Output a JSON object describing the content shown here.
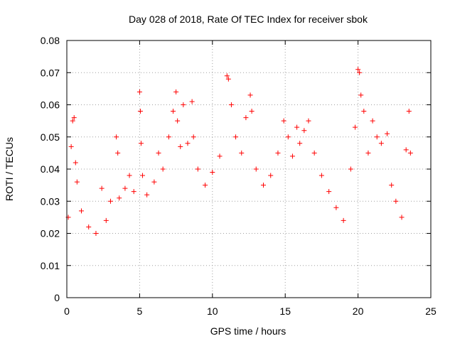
{
  "chart_data": {
    "type": "scatter",
    "title": "Day 028 of 2018, Rate Of TEC Index for receiver sbok",
    "xlabel": "GPS time / hours",
    "ylabel": "ROTI / TECUs",
    "xlim": [
      0,
      25
    ],
    "ylim": [
      0,
      0.08
    ],
    "xticks": [
      0,
      5,
      10,
      15,
      20,
      25
    ],
    "yticks": [
      0,
      0.01,
      0.02,
      0.03,
      0.04,
      0.05,
      0.06,
      0.07,
      0.08
    ],
    "xtick_labels": [
      "0",
      "5",
      "10",
      "15",
      "20",
      "25"
    ],
    "ytick_labels": [
      "0",
      "0.01",
      "0.02",
      "0.03",
      "0.04",
      "0.05",
      "0.06",
      "0.07",
      "0.08"
    ],
    "grid": true,
    "marker": "plus",
    "color": "#ff0000",
    "series": [
      {
        "x": [
          0.1,
          0.3,
          0.4,
          0.5,
          0.6,
          0.7,
          1.0,
          1.5,
          2.0,
          2.4,
          2.7,
          3.0,
          3.4,
          3.5,
          3.6,
          4.0,
          4.3,
          4.6,
          5.0,
          5.05,
          5.1,
          5.2,
          5.5,
          6.0,
          6.3,
          6.6,
          7.0,
          7.3,
          7.5,
          7.6,
          7.8,
          8.0,
          8.3,
          8.6,
          8.7,
          9.0,
          9.5,
          10.0,
          10.5,
          11.0,
          11.1,
          11.3,
          11.6,
          12.0,
          12.3,
          12.6,
          12.7,
          13.0,
          13.5,
          14.0,
          14.5,
          14.9,
          15.2,
          15.5,
          15.8,
          16.0,
          16.3,
          16.6,
          17.0,
          17.5,
          18.0,
          18.5,
          19.0,
          19.5,
          19.8,
          20.0,
          20.1,
          20.2,
          20.4,
          20.7,
          21.0,
          21.3,
          21.6,
          22.0,
          22.3,
          22.6,
          23.0,
          23.3,
          23.5,
          23.6
        ],
        "y": [
          0.025,
          0.047,
          0.055,
          0.056,
          0.042,
          0.036,
          0.027,
          0.022,
          0.02,
          0.034,
          0.024,
          0.03,
          0.05,
          0.045,
          0.031,
          0.034,
          0.038,
          0.033,
          0.064,
          0.058,
          0.048,
          0.038,
          0.032,
          0.036,
          0.045,
          0.04,
          0.05,
          0.058,
          0.064,
          0.055,
          0.047,
          0.06,
          0.048,
          0.061,
          0.05,
          0.04,
          0.035,
          0.039,
          0.044,
          0.069,
          0.068,
          0.06,
          0.05,
          0.045,
          0.056,
          0.063,
          0.058,
          0.04,
          0.035,
          0.038,
          0.045,
          0.055,
          0.05,
          0.044,
          0.053,
          0.048,
          0.052,
          0.055,
          0.045,
          0.038,
          0.033,
          0.028,
          0.024,
          0.04,
          0.053,
          0.071,
          0.07,
          0.063,
          0.058,
          0.045,
          0.055,
          0.05,
          0.048,
          0.051,
          0.035,
          0.03,
          0.025,
          0.046,
          0.058,
          0.045
        ]
      }
    ]
  }
}
